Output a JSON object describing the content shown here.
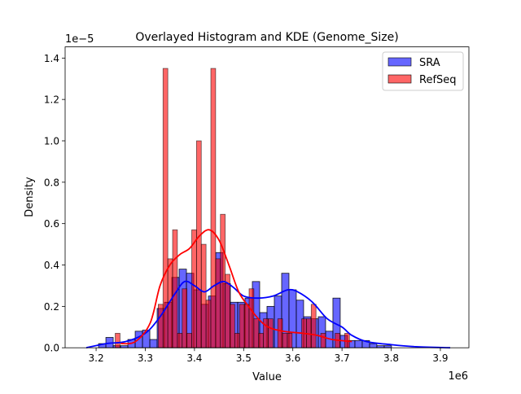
{
  "chart_data": {
    "type": "histogram+kde",
    "title": "Overlayed Histogram and KDE (Genome_Size)",
    "xlabel": "Value",
    "ylabel": "Density",
    "x_offset_label": "1e6",
    "y_offset_label": "1e−5",
    "xlim": [
      3.137,
      3.958
    ],
    "ylim": [
      0,
      1.454
    ],
    "x_ticks": [
      "3.2",
      "3.3",
      "3.4",
      "3.5",
      "3.6",
      "3.7",
      "3.8",
      "3.9"
    ],
    "x_tick_values": [
      3.2,
      3.3,
      3.4,
      3.5,
      3.6,
      3.7,
      3.8,
      3.9
    ],
    "y_ticks": [
      "0.0",
      "0.2",
      "0.4",
      "0.6",
      "0.8",
      "1.0",
      "1.2",
      "1.4"
    ],
    "y_tick_values": [
      0,
      0.2,
      0.4,
      0.6,
      0.8,
      1.0,
      1.2,
      1.4
    ],
    "grid": false,
    "legend_position": "top-right",
    "series": [
      {
        "name": "SRA",
        "color": "#0000ff",
        "bin_start": 3.205,
        "bin_width": 0.01489,
        "values": [
          0.02,
          0.05,
          0.01,
          0.01,
          0.04,
          0.08,
          0.085,
          0.04,
          0.19,
          0.22,
          0.34,
          0.38,
          0.36,
          0.28,
          0.21,
          0.25,
          0.46,
          0.31,
          0.22,
          0.22,
          0.24,
          0.32,
          0.17,
          0.2,
          0.25,
          0.36,
          0.28,
          0.23,
          0.15,
          0.14,
          0.15,
          0.08,
          0.24,
          0.06,
          0.035,
          0.035,
          0.035,
          0.02,
          0.01,
          0.01
        ],
        "kde": [
          [
            3.18,
            0.0
          ],
          [
            3.22,
            0.02
          ],
          [
            3.26,
            0.03
          ],
          [
            3.3,
            0.07
          ],
          [
            3.33,
            0.15
          ],
          [
            3.36,
            0.26
          ],
          [
            3.38,
            0.32
          ],
          [
            3.4,
            0.3
          ],
          [
            3.42,
            0.27
          ],
          [
            3.44,
            0.3
          ],
          [
            3.46,
            0.32
          ],
          [
            3.48,
            0.29
          ],
          [
            3.5,
            0.25
          ],
          [
            3.53,
            0.24
          ],
          [
            3.56,
            0.25
          ],
          [
            3.59,
            0.28
          ],
          [
            3.61,
            0.27
          ],
          [
            3.64,
            0.22
          ],
          [
            3.67,
            0.14
          ],
          [
            3.7,
            0.1
          ],
          [
            3.72,
            0.06
          ],
          [
            3.75,
            0.03
          ],
          [
            3.8,
            0.015
          ],
          [
            3.85,
            0.005
          ],
          [
            3.92,
            0.0
          ]
        ]
      },
      {
        "name": "RefSeq",
        "color": "#ff0000",
        "bin_start": 3.2389,
        "bin_width": 0.00972,
        "values": [
          0.07,
          0,
          0,
          0,
          0,
          0,
          0,
          0,
          0,
          0.21,
          1.35,
          0.43,
          0.57,
          0.07,
          0.285,
          0.07,
          0.57,
          1.0,
          0.5,
          0.23,
          1.35,
          0.43,
          0.645,
          0.355,
          0.21,
          0.07,
          0.21,
          0.21,
          0.285,
          0.14,
          0.07,
          0.14,
          0.14,
          0,
          0.14,
          0.07,
          0.07,
          0,
          0,
          0.14,
          0.14,
          0.21,
          0,
          0.07,
          0,
          0,
          0.07,
          0,
          0.07
        ],
        "kde": [
          [
            3.25,
            0.02
          ],
          [
            3.28,
            0.03
          ],
          [
            3.31,
            0.12
          ],
          [
            3.33,
            0.3
          ],
          [
            3.35,
            0.4
          ],
          [
            3.37,
            0.45
          ],
          [
            3.39,
            0.48
          ],
          [
            3.41,
            0.54
          ],
          [
            3.43,
            0.57
          ],
          [
            3.45,
            0.52
          ],
          [
            3.47,
            0.4
          ],
          [
            3.49,
            0.27
          ],
          [
            3.51,
            0.2
          ],
          [
            3.53,
            0.14
          ],
          [
            3.55,
            0.1
          ],
          [
            3.58,
            0.08
          ],
          [
            3.62,
            0.07
          ],
          [
            3.65,
            0.06
          ],
          [
            3.68,
            0.04
          ],
          [
            3.72,
            0.03
          ]
        ]
      }
    ]
  }
}
